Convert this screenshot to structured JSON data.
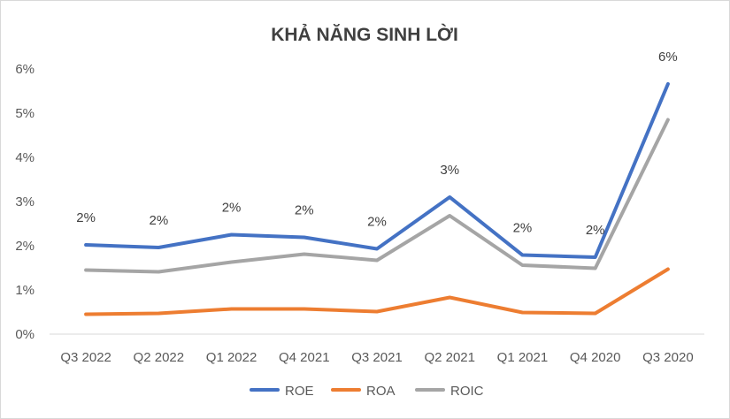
{
  "chart_data": {
    "type": "line",
    "title": "KHẢ NĂNG SINH LỜI",
    "xlabel": "",
    "ylabel": "",
    "categories": [
      "Q3 2022",
      "Q2 2022",
      "Q1 2022",
      "Q4 2021",
      "Q3 2021",
      "Q2 2021",
      "Q1 2021",
      "Q4 2020",
      "Q3 2020"
    ],
    "ylim": [
      0,
      6
    ],
    "y_ticks": [
      0,
      1,
      2,
      3,
      4,
      5,
      6
    ],
    "y_tick_labels": [
      "0%",
      "1%",
      "2%",
      "3%",
      "4%",
      "5%",
      "6%"
    ],
    "grid": false,
    "legend_position": "bottom",
    "series": [
      {
        "name": "ROE",
        "color": "#4472C4",
        "values": [
          2.02,
          1.96,
          2.25,
          2.19,
          1.93,
          3.1,
          1.79,
          1.74,
          5.66
        ],
        "data_labels": [
          "2%",
          "2%",
          "2%",
          "2%",
          "2%",
          "3%",
          "2%",
          "2%",
          "6%"
        ]
      },
      {
        "name": "ROA",
        "color": "#ED7D31",
        "values": [
          0.45,
          0.47,
          0.57,
          0.57,
          0.51,
          0.83,
          0.49,
          0.47,
          1.47
        ]
      },
      {
        "name": "ROIC",
        "color": "#A5A5A5",
        "values": [
          1.45,
          1.41,
          1.63,
          1.81,
          1.67,
          2.68,
          1.56,
          1.49,
          4.85
        ]
      }
    ]
  }
}
